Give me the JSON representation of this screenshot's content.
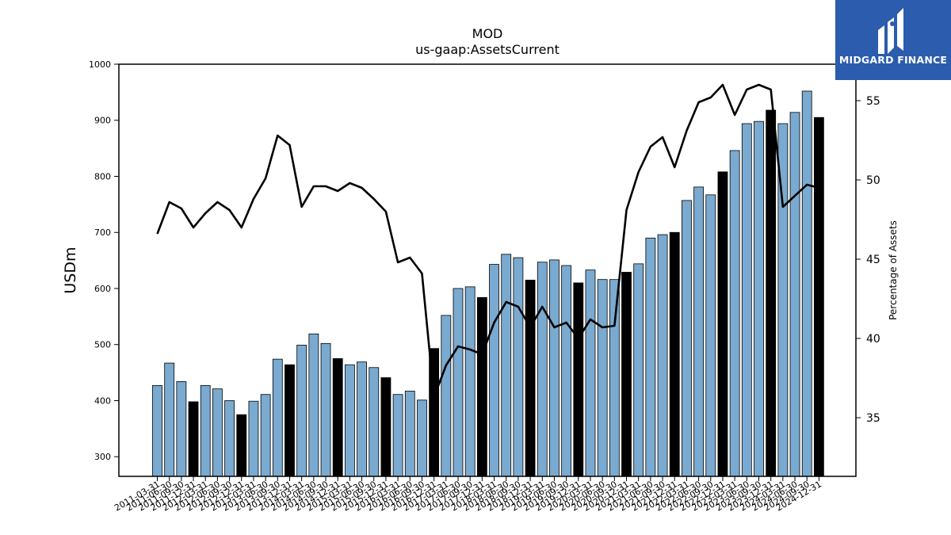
{
  "chart_data": {
    "type": "bar+line",
    "title": "MOD",
    "subtitle": "us-gaap:AssetsCurrent",
    "ylabel": "USDm",
    "y2label": "Percentage of Assets",
    "ylim": [
      265,
      1000
    ],
    "y2lim": [
      31.3,
      57.3
    ],
    "yticks": [
      300,
      400,
      500,
      600,
      700,
      800,
      900,
      1000
    ],
    "y2ticks": [
      35,
      40,
      45,
      50,
      55
    ],
    "colors": {
      "bar": "#7aaad0",
      "bar_fy": "#000000",
      "line": "#000000"
    },
    "categories": [
      "2011-03-31",
      "2011-06-30",
      "2011-09-30",
      "2011-12-31",
      "2012-03-31",
      "2012-06-30",
      "2012-09-30",
      "2012-12-31",
      "2013-03-31",
      "2013-06-30",
      "2013-09-30",
      "2013-12-31",
      "2014-03-31",
      "2014-06-30",
      "2014-09-30",
      "2014-12-31",
      "2015-03-31",
      "2015-06-30",
      "2015-09-30",
      "2015-12-31",
      "2016-03-31",
      "2016-06-30",
      "2016-09-30",
      "2016-12-31",
      "2017-03-31",
      "2017-06-30",
      "2017-09-30",
      "2017-12-31",
      "2018-03-31",
      "2018-06-30",
      "2018-09-30",
      "2018-12-31",
      "2019-03-31",
      "2019-06-30",
      "2019-09-30",
      "2019-12-31",
      "2020-03-31",
      "2020-06-30",
      "2020-09-30",
      "2020-12-31",
      "2021-03-31",
      "2021-06-30",
      "2021-09-30",
      "2021-12-31",
      "2022-03-31",
      "2022-06-30",
      "2022-09-30",
      "2022-12-31",
      "2023-03-31",
      "2023-06-30",
      "2023-09-30",
      "2023-12-31",
      "2024-03-31",
      "2024-06-30",
      "2024-09-30",
      "2024-12-31"
    ],
    "series": [
      {
        "kind": "bar",
        "values": [
          427,
          467,
          434,
          398,
          427,
          421,
          400,
          375,
          399,
          411,
          474,
          464,
          499,
          519,
          502,
          475,
          464,
          469,
          459,
          441,
          411,
          417,
          401,
          493,
          552,
          600,
          603,
          584,
          643,
          661,
          655,
          615,
          647,
          651,
          641,
          610,
          633,
          616,
          616,
          629,
          644,
          690,
          696,
          700,
          757,
          781,
          767,
          808,
          846,
          894,
          898,
          918,
          894,
          914,
          952,
          905
        ],
        "highlight": [
          false,
          false,
          false,
          true,
          false,
          false,
          false,
          true,
          false,
          false,
          false,
          true,
          false,
          false,
          false,
          true,
          false,
          false,
          false,
          true,
          false,
          false,
          false,
          true,
          false,
          false,
          false,
          true,
          false,
          false,
          false,
          true,
          false,
          false,
          false,
          true,
          false,
          false,
          false,
          true,
          false,
          false,
          false,
          true,
          false,
          false,
          false,
          true,
          false,
          false,
          false,
          true,
          false,
          false,
          false,
          true
        ]
      },
      {
        "kind": "line",
        "axis": "right",
        "values": [
          46.6,
          48.6,
          48.2,
          47.0,
          47.9,
          48.6,
          48.1,
          47.0,
          48.8,
          50.1,
          52.8,
          52.2,
          48.3,
          49.6,
          49.6,
          49.3,
          49.8,
          49.5,
          48.8,
          48.0,
          44.8,
          45.1,
          44.1,
          36.3,
          38.3,
          39.5,
          39.3,
          39.0,
          41.0,
          42.3,
          42.0,
          40.7,
          42.0,
          40.7,
          41.0,
          40.0,
          41.2,
          40.7,
          40.8,
          48.1,
          50.5,
          52.1,
          52.7,
          50.8,
          53.1,
          54.9,
          55.2,
          56.0,
          54.1,
          55.7,
          56.0,
          55.7,
          48.3,
          49.0,
          49.7,
          49.5
        ]
      }
    ],
    "tick_labels": [
      "2011-03-31",
      "2011-06-30",
      "2011-09-30",
      "2011-12-31",
      "2012-03-31",
      "2012-06-30",
      "2012-09-30",
      "2012-12-31",
      "2013-03-31",
      "2013-06-30",
      "2013-09-30",
      "2013-12-31",
      "2014-03-31",
      "2014-06-30",
      "2014-09-30",
      "2014-12-31",
      "2015-03-31",
      "2015-06-30",
      "2015-09-30",
      "2015-12-31",
      "2016-03-31",
      "2016-06-30",
      "2016-09-30",
      "2016-12-31",
      "2017-03-31",
      "2017-06-30",
      "2017-09-30",
      "2017-12-31",
      "2018-03-31",
      "2018-06-30",
      "2018-09-30",
      "2018-12-31",
      "2019-03-31",
      "2019-06-30",
      "2019-09-30",
      "2019-12-31",
      "2020-03-31",
      "2020-06-30",
      "2020-09-30",
      "2020-12-31",
      "2021-03-31",
      "2021-06-30",
      "2021-09-30",
      "2021-12-31",
      "2022-03-31",
      "2022-06-30",
      "2022-09-30",
      "2022-12-31",
      "2023-03-31",
      "2023-06-30",
      "2023-09-30",
      "2023-12-31",
      "2024-03-31",
      "2024-06-30",
      "2024-09-30",
      "2024-12-31"
    ]
  },
  "logo": {
    "text": "MIDGARD FINANCE",
    "icon": "midgard-logo-icon",
    "background": "#2b5cad"
  }
}
